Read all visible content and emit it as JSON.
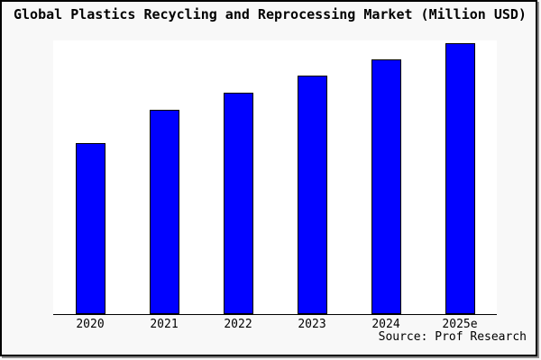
{
  "chart_data": {
    "type": "bar",
    "title": "Global Plastics Recycling and Reprocessing Market (Million USD)",
    "categories": [
      "2020",
      "2021",
      "2022",
      "2023",
      "2024",
      "2025e"
    ],
    "values": [
      188,
      225,
      244,
      263,
      281,
      299
    ],
    "values_note": "y-axis is unlabeled in the chart; values are relative bar heights in pixels",
    "xlabel": "",
    "ylabel": "",
    "source": "Source: Prof Research",
    "bar_color": "#0000ff",
    "bar_border_color": "#000000",
    "background_color": "#f8f8f8",
    "plot_background_color": "#ffffff",
    "axis_color": "#000000",
    "grid": false,
    "legend": "none"
  }
}
